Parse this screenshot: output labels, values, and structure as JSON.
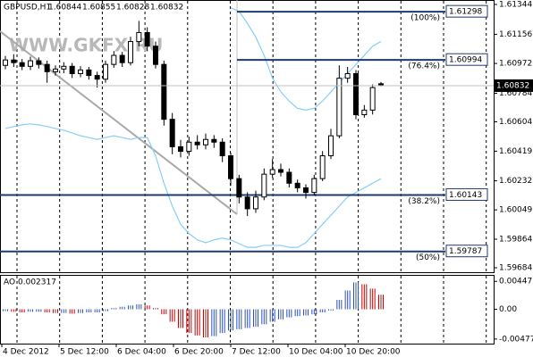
{
  "chart_data": {
    "type": "candlestick",
    "symbol": "GBPUSD,H1",
    "watermark": "WWW.GKFX.RU",
    "ohlc": [
      [
        1.6096,
        1.6102,
        1.60935,
        1.60994
      ],
      [
        1.60994,
        1.6103,
        1.6095,
        1.60977
      ],
      [
        1.60977,
        1.61,
        1.6093,
        1.60954
      ],
      [
        1.60954,
        1.61015,
        1.6093,
        1.60989
      ],
      [
        1.60989,
        1.6101,
        1.6094,
        1.60966
      ],
      [
        1.60966,
        1.6099,
        1.6085,
        1.6092
      ],
      [
        1.6092,
        1.6096,
        1.60895,
        1.60937
      ],
      [
        1.60937,
        1.6098,
        1.6091,
        1.60954
      ],
      [
        1.60954,
        1.60975,
        1.6088,
        1.60908
      ],
      [
        1.60908,
        1.60955,
        1.60885,
        1.60931
      ],
      [
        1.60931,
        1.6095,
        1.6087,
        1.60896
      ],
      [
        1.60896,
        1.6092,
        1.6082,
        1.60873
      ],
      [
        1.60873,
        1.6099,
        1.6085,
        1.60966
      ],
      [
        1.60966,
        1.6105,
        1.60945,
        1.61023
      ],
      [
        1.61023,
        1.61045,
        1.6095,
        1.60977
      ],
      [
        1.60977,
        1.6114,
        1.6096,
        1.6111
      ],
      [
        1.6111,
        1.6124,
        1.6108,
        1.61167
      ],
      [
        1.61167,
        1.612,
        1.6105,
        1.61081
      ],
      [
        1.61081,
        1.6111,
        1.6094,
        1.60966
      ],
      [
        1.60966,
        1.6099,
        1.6058,
        1.6062
      ],
      [
        1.6062,
        1.6066,
        1.604,
        1.60447
      ],
      [
        1.60447,
        1.6049,
        1.6038,
        1.60418
      ],
      [
        1.60418,
        1.6051,
        1.6039,
        1.60476
      ],
      [
        1.60476,
        1.6052,
        1.6043,
        1.60459
      ],
      [
        1.60459,
        1.6053,
        1.6043,
        1.60493
      ],
      [
        1.60493,
        1.6052,
        1.6044,
        1.60476
      ],
      [
        1.60476,
        1.605,
        1.6035,
        1.6039
      ],
      [
        1.6039,
        1.6041,
        1.602,
        1.60246
      ],
      [
        1.60246,
        1.6027,
        1.6009,
        1.6013
      ],
      [
        1.6013,
        1.6016,
        1.6001,
        1.60056
      ],
      [
        1.60056,
        1.6017,
        1.6003,
        1.6013
      ],
      [
        1.6013,
        1.6031,
        1.6011,
        1.60274
      ],
      [
        1.60274,
        1.6037,
        1.6025,
        1.60303
      ],
      [
        1.60303,
        1.6034,
        1.6026,
        1.60286
      ],
      [
        1.60286,
        1.6031,
        1.6019,
        1.60217
      ],
      [
        1.60217,
        1.6024,
        1.6016,
        1.60188
      ],
      [
        1.60188,
        1.6021,
        1.6012,
        1.60159
      ],
      [
        1.60159,
        1.6027,
        1.6014,
        1.60246
      ],
      [
        1.60246,
        1.6042,
        1.6023,
        1.6039
      ],
      [
        1.6039,
        1.6056,
        1.6037,
        1.60516
      ],
      [
        1.60516,
        1.6096,
        1.605,
        1.60879
      ],
      [
        1.60879,
        1.6095,
        1.6085,
        1.60908
      ],
      [
        1.60908,
        1.6093,
        1.6062,
        1.60649
      ],
      [
        1.60649,
        1.6071,
        1.6063,
        1.60678
      ],
      [
        1.60678,
        1.6084,
        1.6065,
        1.6082
      ],
      [
        1.60844,
        1.60855,
        1.60828,
        1.60832
      ]
    ],
    "bands": [
      {
        "color": "#87cefa",
        "values": [
          null,
          null,
          null,
          null,
          null,
          null,
          null,
          null,
          null,
          null,
          null,
          null,
          null,
          null,
          null,
          null,
          null,
          null,
          null,
          null,
          null,
          null,
          null,
          null,
          null,
          null,
          null,
          1.61323,
          1.613,
          1.61225,
          1.61138,
          1.61023,
          1.60879,
          1.60793,
          1.60735,
          1.60689,
          1.60678,
          1.60689,
          1.60735,
          1.60793,
          1.6085,
          1.60908,
          1.60966,
          1.61023,
          1.61081,
          1.6111
        ]
      },
      {
        "color": "#87cefa",
        "values": [
          1.60562,
          1.60574,
          1.60585,
          1.60591,
          1.60585,
          1.60574,
          1.60562,
          1.60551,
          1.60534,
          1.60516,
          1.60505,
          1.60493,
          1.60505,
          1.60516,
          1.60505,
          1.60493,
          1.60505,
          1.60505,
          1.6039,
          1.60217,
          1.60073,
          1.59958,
          1.599,
          1.5986,
          1.59842,
          1.5986,
          1.59871,
          1.5986,
          1.59836,
          1.59813,
          1.59813,
          1.59825,
          1.59825,
          1.59825,
          1.59813,
          1.59813,
          1.59842,
          1.599,
          1.59958,
          1.60015,
          1.60073,
          1.6013,
          1.60159,
          1.60188,
          1.60217,
          1.60246
        ]
      }
    ],
    "levels": [
      {
        "value": 1.61298,
        "percent": "(100%)"
      },
      {
        "value": 1.60994,
        "percent": "(76.4%)"
      },
      {
        "value": 1.60143,
        "percent": "(38.2%)"
      },
      {
        "value": 1.59787,
        "percent": "(50%)"
      }
    ],
    "ylim": [
      1.59656,
      1.61372
    ],
    "yticks": [
      1.61344,
      1.61156,
      1.60972,
      1.60784,
      1.60604,
      1.60419,
      1.60232,
      1.60049,
      1.59864,
      1.59684
    ],
    "x_labels": [
      "4 Dec 2012",
      "5 Dec 12:00",
      "6 Dec 04:00",
      "6 Dec 20:00",
      "7 Dec 12:00",
      "10 Dec 04:00",
      "10 Dec 20:00"
    ],
    "indicator": {
      "name": "AO",
      "up_color": "#2a52be",
      "down_color": "#cc0000",
      "values": [
        -0.0003,
        -0.0004,
        -0.0005,
        -0.0004,
        -0.0004,
        -0.0005,
        -0.0006,
        -0.0006,
        -0.0007,
        -0.0006,
        -0.0005,
        -0.0005,
        -0.0003,
        0.0002,
        0.0004,
        0.0006,
        0.0008,
        0.0006,
        0.0002,
        -0.0008,
        -0.002,
        -0.003,
        -0.0038,
        -0.0042,
        -0.0045,
        -0.0043,
        -0.0038,
        -0.0034,
        -0.0032,
        -0.003,
        -0.0028,
        -0.0024,
        -0.002,
        -0.0016,
        -0.0013,
        -0.0011,
        -0.001,
        -0.0008,
        -0.0005,
        -0.0002,
        0.0015,
        0.003,
        0.0043,
        0.004,
        0.0033,
        0.002317
      ],
      "ylim": [
        -0.0055,
        0.0055
      ],
      "yticks": [
        0.00447,
        {
          "value": 0,
          "label": "0.00"
        },
        -0.00477
      ]
    }
  }
}
